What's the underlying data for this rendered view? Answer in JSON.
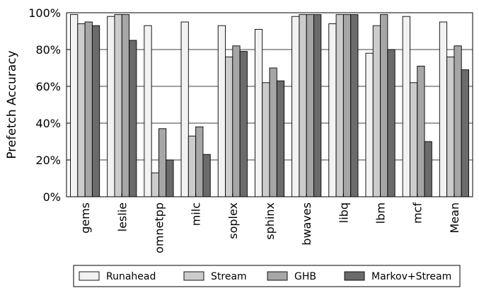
{
  "chart_data": {
    "type": "bar",
    "ylabel": "Prefetch Accuracy",
    "ylim": [
      0,
      100
    ],
    "yticks": [
      "0%",
      "20%",
      "40%",
      "60%",
      "80%",
      "100%"
    ],
    "categories": [
      "gems",
      "leslie",
      "omnetpp",
      "milc",
      "soplex",
      "sphinx",
      "bwaves",
      "libq",
      "lbm",
      "mcf",
      "Mean"
    ],
    "series": [
      {
        "name": "Runahead",
        "color": "#f2f2f2",
        "values": [
          99,
          98,
          93,
          95,
          93,
          91,
          98,
          94,
          78,
          98,
          95
        ]
      },
      {
        "name": "Stream",
        "color": "#cccccc",
        "values": [
          94,
          99,
          13,
          33,
          76,
          62,
          99,
          99,
          93,
          62,
          76
        ]
      },
      {
        "name": "GHB",
        "color": "#a6a6a6",
        "values": [
          95,
          99,
          37,
          38,
          82,
          70,
          99,
          99,
          99,
          71,
          82
        ]
      },
      {
        "name": "Markov+Stream",
        "color": "#6b6b6b",
        "values": [
          93,
          85,
          20,
          23,
          79,
          63,
          99,
          99,
          80,
          30,
          69
        ]
      }
    ],
    "grid": "horizontal",
    "legend": "bottom"
  }
}
